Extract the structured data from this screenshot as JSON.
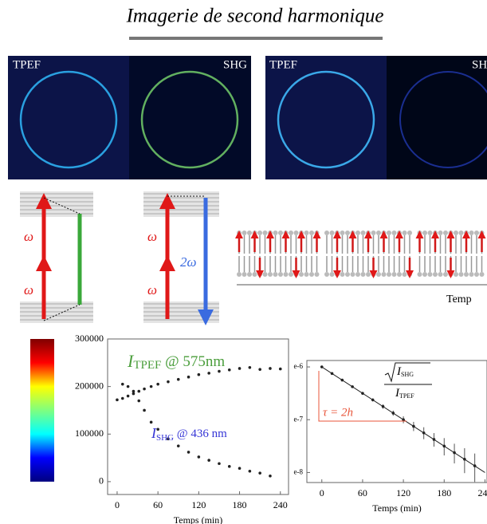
{
  "header": {
    "title": "Imagerie de second harmonique"
  },
  "images": [
    {
      "label": "TPEF"
    },
    {
      "label": "SHG"
    },
    {
      "label": "TPEF"
    },
    {
      "label": "SH"
    }
  ],
  "tpef_diagram": {
    "labels": [
      "ω",
      "ω"
    ]
  },
  "shg_diagram": {
    "labels": [
      "ω",
      "ω",
      "2ω"
    ]
  },
  "membrane": {
    "axis_label": "Temp"
  },
  "chart_data": [
    {
      "type": "scatter",
      "xlabel": "Temps (min)",
      "xlim": [
        -14,
        252
      ],
      "xticks": [
        0,
        60,
        120,
        180,
        240
      ],
      "ylim": [
        -27000,
        300000
      ],
      "yticks": [
        0,
        100000,
        200000,
        300000
      ],
      "colorbar": [
        "#00007f",
        "#0000ff",
        "#00ffff",
        "#7fff7f",
        "#ffff00",
        "#ff0000",
        "#7f0000"
      ],
      "series": [
        {
          "color": "#222222",
          "x": [
            0,
            8,
            16,
            24,
            32,
            40,
            50,
            60,
            75,
            90,
            105,
            120,
            135,
            150,
            165,
            180,
            195,
            210,
            225,
            240
          ],
          "values": [
            172000,
            175000,
            180000,
            185000,
            190000,
            195000,
            200000,
            205000,
            210000,
            215000,
            220000,
            225000,
            228000,
            232000,
            235000,
            238000,
            240000,
            236000,
            238000,
            237000
          ]
        },
        {
          "color": "#222222",
          "x": [
            8,
            16,
            24,
            32,
            40,
            50,
            60,
            75,
            90,
            105,
            120,
            135,
            150,
            165,
            180,
            195,
            210,
            225
          ],
          "values": [
            205000,
            200000,
            190000,
            170000,
            150000,
            125000,
            110000,
            90000,
            75000,
            62000,
            52000,
            45000,
            38000,
            32000,
            28000,
            22000,
            18000,
            12000
          ]
        }
      ],
      "annotations": [
        {
          "parts": [
            "I",
            "TPEF",
            " @ 575nm"
          ],
          "color": "#4b9e3c"
        },
        {
          "parts": [
            "I",
            "SHG",
            " @ 436 nm"
          ],
          "color": "#3535d6"
        }
      ]
    },
    {
      "type": "scatter",
      "scale": "log",
      "xlabel": "Temps (min)",
      "xlim": [
        -22,
        243
      ],
      "xticks": [
        0,
        60,
        120,
        180,
        240
      ],
      "ylim": [
        0.000277,
        0.0028
      ],
      "yticks": [
        {
          "value": 0.002479,
          "label": "e-6"
        },
        {
          "value": 0.000912,
          "label": "e-7"
        },
        {
          "value": 0.000335,
          "label": "e-8"
        }
      ],
      "series": [
        {
          "color": "#222222",
          "x": [
            0,
            15,
            30,
            45,
            60,
            75,
            90,
            105,
            120,
            135,
            150,
            165,
            180,
            195,
            210,
            225
          ],
          "values": [
            0.002479,
            0.002188,
            0.00193,
            0.001703,
            0.001503,
            0.001327,
            0.001171,
            0.001033,
            0.000912,
            0.000805,
            0.00071,
            0.000627,
            0.000553,
            0.000488,
            0.000431,
            0.00038
          ],
          "errors": [
            4e-05,
            4e-05,
            4e-05,
            4e-05,
            4e-05,
            4e-05,
            5e-05,
            5e-05,
            6e-05,
            7e-05,
            8e-05,
            8e-05,
            9e-05,
            9e-05,
            0.0001,
            0.0001
          ]
        },
        {
          "color": "#222222",
          "line": true,
          "x": [
            0,
            240
          ],
          "values": [
            0.002479,
            0.000335
          ]
        }
      ],
      "formula": {
        "numerator": [
          "I",
          "SHG"
        ],
        "denominator": [
          "I",
          "TPEF"
        ]
      },
      "tau": {
        "text": "τ = 2h",
        "color": "#e8553a"
      }
    }
  ]
}
